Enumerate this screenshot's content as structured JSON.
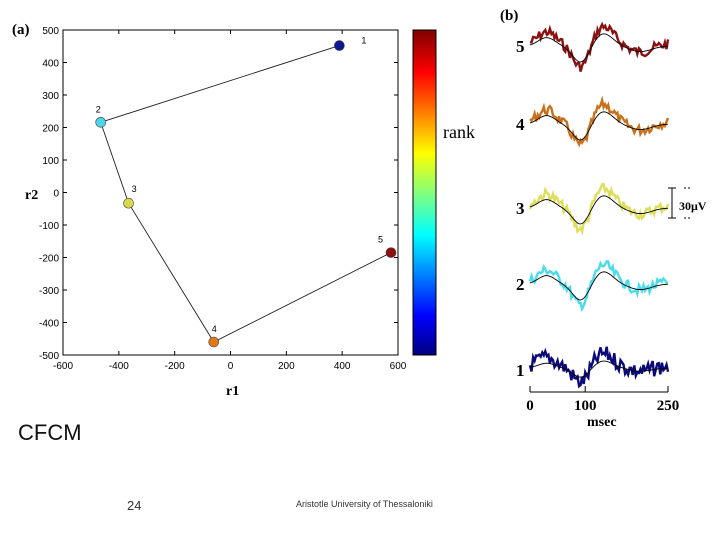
{
  "slide": {
    "title": "CFCM",
    "page_number": "24",
    "footer": "Aristotle University of Thessaloniki"
  },
  "chart_data": [
    {
      "panel_label": "(a)",
      "type": "scatter",
      "title": "",
      "xlabel": "r1",
      "ylabel": "r2",
      "xlim": [
        -600,
        600
      ],
      "ylim": [
        -500,
        500
      ],
      "x_ticks": [
        "-600",
        "-400",
        "-200",
        "0",
        "200",
        "400",
        "600"
      ],
      "y_ticks": [
        "500",
        "400",
        "300",
        "200",
        "100",
        "0",
        "-100",
        "-200",
        "-300",
        "-400",
        "-500"
      ],
      "points": [
        {
          "label": "1",
          "x": 390,
          "y": 452,
          "color": "#0b1890"
        },
        {
          "label": "2",
          "x": -465,
          "y": 216,
          "color": "#49d6e8"
        },
        {
          "label": "3",
          "x": -365,
          "y": -33,
          "color": "#d8d84a"
        },
        {
          "label": "4",
          "x": -60,
          "y": -460,
          "color": "#e07818"
        },
        {
          "label": "5",
          "x": 575,
          "y": -185,
          "color": "#8c1010"
        }
      ],
      "path_order": [
        "1",
        "2",
        "3",
        "4",
        "5"
      ],
      "colorbar_label": "rank"
    },
    {
      "panel_label": "(b)",
      "type": "line",
      "title": "",
      "xlabel": "msec",
      "ylabel": "",
      "x_ticks": [
        "0",
        "100",
        "250"
      ],
      "xlim": [
        0,
        250
      ],
      "scale_bar_label": "30μV",
      "row_labels": [
        "5",
        "4",
        "3",
        "2",
        "1"
      ],
      "series": [
        {
          "name": "5",
          "color": "#8c1010"
        },
        {
          "name": "4",
          "color": "#c8701a"
        },
        {
          "name": "3",
          "color": "#dede5a"
        },
        {
          "name": "2",
          "color": "#48dcec"
        },
        {
          "name": "1",
          "color": "#0a0a7a"
        }
      ]
    }
  ]
}
